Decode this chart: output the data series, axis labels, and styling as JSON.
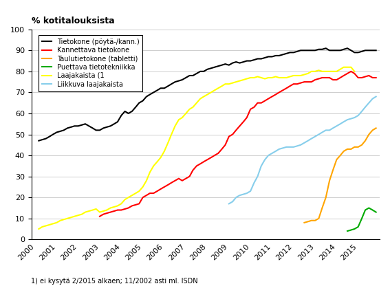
{
  "title": "% kotitalouksista",
  "footnote": "1) ei kysytä 2/2015 alkaen; 11/2002 asti ml. ISDN",
  "ylim": [
    0,
    100
  ],
  "yticks": [
    0,
    10,
    20,
    30,
    40,
    50,
    60,
    70,
    80,
    90,
    100
  ],
  "xtick_labels": [
    "2000",
    "2001",
    "2002",
    "2003",
    "2004",
    "2005",
    "2006",
    "2007",
    "2008",
    "2009",
    "2010",
    "2011",
    "2012",
    "2013",
    "2014",
    "2015"
  ],
  "series": [
    {
      "label": "Tietokone (pöytä-/kann.)",
      "color": "#000000",
      "linewidth": 1.5,
      "data": [
        [
          2000.17,
          47
        ],
        [
          2000.33,
          47.5
        ],
        [
          2000.5,
          48
        ],
        [
          2000.67,
          49
        ],
        [
          2000.83,
          50
        ],
        [
          2001.0,
          51
        ],
        [
          2001.17,
          51.5
        ],
        [
          2001.33,
          52
        ],
        [
          2001.5,
          53
        ],
        [
          2001.67,
          53.5
        ],
        [
          2001.83,
          54
        ],
        [
          2002.0,
          54
        ],
        [
          2002.17,
          54.5
        ],
        [
          2002.33,
          55
        ],
        [
          2002.5,
          54
        ],
        [
          2002.67,
          53
        ],
        [
          2002.83,
          52
        ],
        [
          2003.0,
          52
        ],
        [
          2003.17,
          53
        ],
        [
          2003.33,
          53.5
        ],
        [
          2003.5,
          54
        ],
        [
          2003.67,
          55
        ],
        [
          2003.83,
          56
        ],
        [
          2004.0,
          59
        ],
        [
          2004.17,
          61
        ],
        [
          2004.33,
          60
        ],
        [
          2004.5,
          61
        ],
        [
          2004.67,
          63
        ],
        [
          2004.83,
          65
        ],
        [
          2005.0,
          66
        ],
        [
          2005.17,
          68
        ],
        [
          2005.33,
          69
        ],
        [
          2005.5,
          70
        ],
        [
          2005.67,
          71
        ],
        [
          2005.83,
          72
        ],
        [
          2006.0,
          72
        ],
        [
          2006.17,
          73
        ],
        [
          2006.33,
          74
        ],
        [
          2006.5,
          75
        ],
        [
          2006.67,
          75.5
        ],
        [
          2006.83,
          76
        ],
        [
          2007.0,
          77
        ],
        [
          2007.17,
          78
        ],
        [
          2007.33,
          78
        ],
        [
          2007.5,
          79
        ],
        [
          2007.67,
          80
        ],
        [
          2007.83,
          80
        ],
        [
          2008.0,
          81
        ],
        [
          2008.17,
          81.5
        ],
        [
          2008.33,
          82
        ],
        [
          2008.5,
          82.5
        ],
        [
          2008.67,
          83
        ],
        [
          2008.83,
          83.5
        ],
        [
          2009.0,
          83
        ],
        [
          2009.17,
          84
        ],
        [
          2009.33,
          84.5
        ],
        [
          2009.5,
          84
        ],
        [
          2009.67,
          84.5
        ],
        [
          2009.83,
          85
        ],
        [
          2010.0,
          85
        ],
        [
          2010.17,
          85.5
        ],
        [
          2010.33,
          86
        ],
        [
          2010.5,
          86
        ],
        [
          2010.67,
          86.5
        ],
        [
          2010.83,
          87
        ],
        [
          2011.0,
          87
        ],
        [
          2011.17,
          87.5
        ],
        [
          2011.33,
          87.5
        ],
        [
          2011.5,
          88
        ],
        [
          2011.67,
          88.5
        ],
        [
          2011.83,
          89
        ],
        [
          2012.0,
          89
        ],
        [
          2012.17,
          89.5
        ],
        [
          2012.33,
          90
        ],
        [
          2012.5,
          90
        ],
        [
          2012.67,
          90
        ],
        [
          2012.83,
          90
        ],
        [
          2013.0,
          90
        ],
        [
          2013.17,
          90.5
        ],
        [
          2013.33,
          90.5
        ],
        [
          2013.5,
          91
        ],
        [
          2013.67,
          90
        ],
        [
          2013.83,
          90
        ],
        [
          2014.0,
          90
        ],
        [
          2014.17,
          90
        ],
        [
          2014.33,
          90.5
        ],
        [
          2014.5,
          91
        ],
        [
          2014.67,
          90
        ],
        [
          2014.83,
          89
        ],
        [
          2015.0,
          89
        ],
        [
          2015.17,
          89.5
        ],
        [
          2015.33,
          90
        ],
        [
          2015.5,
          90
        ],
        [
          2015.67,
          90
        ],
        [
          2015.83,
          90
        ]
      ]
    },
    {
      "label": "Kannettava tietokone",
      "color": "#ff0000",
      "linewidth": 1.5,
      "data": [
        [
          2003.0,
          11
        ],
        [
          2003.17,
          12
        ],
        [
          2003.33,
          12.5
        ],
        [
          2003.5,
          13
        ],
        [
          2003.67,
          13.5
        ],
        [
          2003.83,
          14
        ],
        [
          2004.0,
          14
        ],
        [
          2004.17,
          14.5
        ],
        [
          2004.33,
          15
        ],
        [
          2004.5,
          16
        ],
        [
          2004.67,
          16.5
        ],
        [
          2004.83,
          17
        ],
        [
          2005.0,
          20
        ],
        [
          2005.17,
          21
        ],
        [
          2005.33,
          22
        ],
        [
          2005.5,
          22
        ],
        [
          2005.67,
          23
        ],
        [
          2005.83,
          24
        ],
        [
          2006.0,
          25
        ],
        [
          2006.17,
          26
        ],
        [
          2006.33,
          27
        ],
        [
          2006.5,
          28
        ],
        [
          2006.67,
          29
        ],
        [
          2006.83,
          28
        ],
        [
          2007.0,
          29
        ],
        [
          2007.17,
          30
        ],
        [
          2007.33,
          33
        ],
        [
          2007.5,
          35
        ],
        [
          2007.67,
          36
        ],
        [
          2007.83,
          37
        ],
        [
          2008.0,
          38
        ],
        [
          2008.17,
          39
        ],
        [
          2008.33,
          40
        ],
        [
          2008.5,
          41
        ],
        [
          2008.67,
          43
        ],
        [
          2008.83,
          45
        ],
        [
          2009.0,
          49
        ],
        [
          2009.17,
          50
        ],
        [
          2009.33,
          52
        ],
        [
          2009.5,
          54
        ],
        [
          2009.67,
          56
        ],
        [
          2009.83,
          58
        ],
        [
          2010.0,
          62
        ],
        [
          2010.17,
          63
        ],
        [
          2010.33,
          65
        ],
        [
          2010.5,
          65
        ],
        [
          2010.67,
          66
        ],
        [
          2010.83,
          67
        ],
        [
          2011.0,
          68
        ],
        [
          2011.17,
          69
        ],
        [
          2011.33,
          70
        ],
        [
          2011.5,
          71
        ],
        [
          2011.67,
          72
        ],
        [
          2011.83,
          73
        ],
        [
          2012.0,
          74
        ],
        [
          2012.17,
          74
        ],
        [
          2012.33,
          74.5
        ],
        [
          2012.5,
          75
        ],
        [
          2012.67,
          75
        ],
        [
          2012.83,
          75
        ],
        [
          2013.0,
          76
        ],
        [
          2013.17,
          76.5
        ],
        [
          2013.33,
          77
        ],
        [
          2013.5,
          77
        ],
        [
          2013.67,
          77
        ],
        [
          2013.83,
          76
        ],
        [
          2014.0,
          76
        ],
        [
          2014.17,
          77
        ],
        [
          2014.33,
          78
        ],
        [
          2014.5,
          79
        ],
        [
          2014.67,
          80
        ],
        [
          2014.83,
          79
        ],
        [
          2015.0,
          77
        ],
        [
          2015.17,
          77
        ],
        [
          2015.33,
          77.5
        ],
        [
          2015.5,
          78
        ],
        [
          2015.67,
          77
        ],
        [
          2015.83,
          77
        ]
      ]
    },
    {
      "label": "Taulutietokone (tabletti)",
      "color": "#ffa500",
      "linewidth": 1.5,
      "data": [
        [
          2012.5,
          8
        ],
        [
          2012.67,
          8.5
        ],
        [
          2012.83,
          9
        ],
        [
          2013.0,
          9
        ],
        [
          2013.17,
          10
        ],
        [
          2013.33,
          15
        ],
        [
          2013.5,
          20
        ],
        [
          2013.67,
          28
        ],
        [
          2013.83,
          33
        ],
        [
          2014.0,
          38
        ],
        [
          2014.17,
          40
        ],
        [
          2014.33,
          42
        ],
        [
          2014.5,
          43
        ],
        [
          2014.67,
          43
        ],
        [
          2014.83,
          44
        ],
        [
          2015.0,
          44
        ],
        [
          2015.17,
          45
        ],
        [
          2015.33,
          47
        ],
        [
          2015.5,
          50
        ],
        [
          2015.67,
          52
        ],
        [
          2015.83,
          53
        ]
      ]
    },
    {
      "label": "Puettava tietotekniikka",
      "color": "#00aa00",
      "linewidth": 1.5,
      "data": [
        [
          2014.5,
          4
        ],
        [
          2014.67,
          4.5
        ],
        [
          2014.83,
          5
        ],
        [
          2015.0,
          6
        ],
        [
          2015.17,
          10
        ],
        [
          2015.33,
          14
        ],
        [
          2015.5,
          15
        ],
        [
          2015.67,
          14
        ],
        [
          2015.83,
          13
        ]
      ]
    },
    {
      "label": "Laajakaista (1",
      "color": "#ffff00",
      "linewidth": 1.5,
      "data": [
        [
          2000.17,
          5
        ],
        [
          2000.33,
          6
        ],
        [
          2000.5,
          6.5
        ],
        [
          2000.67,
          7
        ],
        [
          2000.83,
          7.5
        ],
        [
          2001.0,
          8
        ],
        [
          2001.17,
          9
        ],
        [
          2001.33,
          9.5
        ],
        [
          2001.5,
          10
        ],
        [
          2001.67,
          10.5
        ],
        [
          2001.83,
          11
        ],
        [
          2002.0,
          11.5
        ],
        [
          2002.17,
          12
        ],
        [
          2002.33,
          13
        ],
        [
          2002.5,
          13.5
        ],
        [
          2002.67,
          14
        ],
        [
          2002.83,
          14.5
        ],
        [
          2003.0,
          13
        ],
        [
          2003.17,
          13.5
        ],
        [
          2003.33,
          14
        ],
        [
          2003.5,
          15
        ],
        [
          2003.67,
          15.5
        ],
        [
          2003.83,
          16
        ],
        [
          2004.0,
          17
        ],
        [
          2004.17,
          19
        ],
        [
          2004.33,
          20
        ],
        [
          2004.5,
          21
        ],
        [
          2004.67,
          22
        ],
        [
          2004.83,
          23
        ],
        [
          2005.0,
          25
        ],
        [
          2005.17,
          28
        ],
        [
          2005.33,
          32
        ],
        [
          2005.5,
          35
        ],
        [
          2005.67,
          37
        ],
        [
          2005.83,
          39
        ],
        [
          2006.0,
          42
        ],
        [
          2006.17,
          46
        ],
        [
          2006.33,
          50
        ],
        [
          2006.5,
          54
        ],
        [
          2006.67,
          57
        ],
        [
          2006.83,
          58
        ],
        [
          2007.0,
          60
        ],
        [
          2007.17,
          62
        ],
        [
          2007.33,
          63
        ],
        [
          2007.5,
          65
        ],
        [
          2007.67,
          67
        ],
        [
          2007.83,
          68
        ],
        [
          2008.0,
          69
        ],
        [
          2008.17,
          70
        ],
        [
          2008.33,
          71
        ],
        [
          2008.5,
          72
        ],
        [
          2008.67,
          73
        ],
        [
          2008.83,
          74
        ],
        [
          2009.0,
          74
        ],
        [
          2009.17,
          74.5
        ],
        [
          2009.33,
          75
        ],
        [
          2009.5,
          75.5
        ],
        [
          2009.67,
          76
        ],
        [
          2009.83,
          76.5
        ],
        [
          2010.0,
          77
        ],
        [
          2010.17,
          77
        ],
        [
          2010.33,
          77.5
        ],
        [
          2010.5,
          77
        ],
        [
          2010.67,
          76.5
        ],
        [
          2010.83,
          77
        ],
        [
          2011.0,
          77
        ],
        [
          2011.17,
          77.5
        ],
        [
          2011.33,
          77
        ],
        [
          2011.5,
          77
        ],
        [
          2011.67,
          77
        ],
        [
          2011.83,
          77.5
        ],
        [
          2012.0,
          78
        ],
        [
          2012.17,
          78
        ],
        [
          2012.33,
          78
        ],
        [
          2012.5,
          78.5
        ],
        [
          2012.67,
          79
        ],
        [
          2012.83,
          80
        ],
        [
          2013.0,
          80
        ],
        [
          2013.17,
          80.5
        ],
        [
          2013.33,
          80
        ],
        [
          2013.5,
          80
        ],
        [
          2013.67,
          80
        ],
        [
          2013.83,
          80
        ],
        [
          2014.0,
          80
        ],
        [
          2014.17,
          81
        ],
        [
          2014.33,
          82
        ],
        [
          2014.5,
          82
        ],
        [
          2014.67,
          82
        ],
        [
          2014.83,
          80
        ]
      ]
    },
    {
      "label": "Liikkuva laajakaista",
      "color": "#87ceeb",
      "linewidth": 1.5,
      "data": [
        [
          2009.0,
          17
        ],
        [
          2009.17,
          18
        ],
        [
          2009.33,
          20
        ],
        [
          2009.5,
          21
        ],
        [
          2009.67,
          21.5
        ],
        [
          2009.83,
          22
        ],
        [
          2010.0,
          23
        ],
        [
          2010.17,
          27
        ],
        [
          2010.33,
          30
        ],
        [
          2010.5,
          35
        ],
        [
          2010.67,
          38
        ],
        [
          2010.83,
          40
        ],
        [
          2011.0,
          41
        ],
        [
          2011.17,
          42
        ],
        [
          2011.33,
          43
        ],
        [
          2011.5,
          43.5
        ],
        [
          2011.67,
          44
        ],
        [
          2011.83,
          44
        ],
        [
          2012.0,
          44
        ],
        [
          2012.17,
          44.5
        ],
        [
          2012.33,
          45
        ],
        [
          2012.5,
          46
        ],
        [
          2012.67,
          47
        ],
        [
          2012.83,
          48
        ],
        [
          2013.0,
          49
        ],
        [
          2013.17,
          50
        ],
        [
          2013.33,
          51
        ],
        [
          2013.5,
          52
        ],
        [
          2013.67,
          52
        ],
        [
          2013.83,
          53
        ],
        [
          2014.0,
          54
        ],
        [
          2014.17,
          55
        ],
        [
          2014.33,
          56
        ],
        [
          2014.5,
          57
        ],
        [
          2014.67,
          57.5
        ],
        [
          2014.83,
          58
        ],
        [
          2015.0,
          59
        ],
        [
          2015.17,
          61
        ],
        [
          2015.33,
          63
        ],
        [
          2015.5,
          65
        ],
        [
          2015.67,
          67
        ],
        [
          2015.83,
          68
        ]
      ]
    }
  ]
}
